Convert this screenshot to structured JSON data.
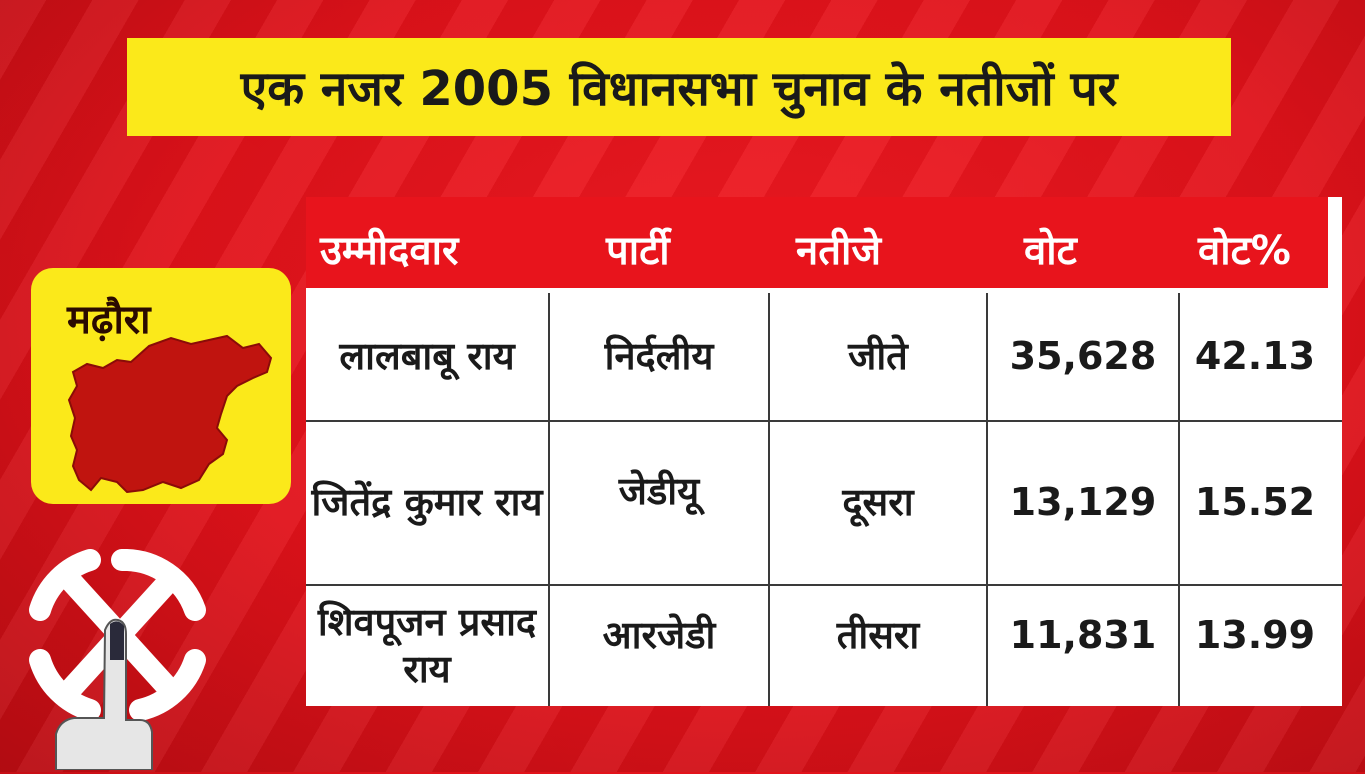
{
  "title": "एक नजर 2005 विधानसभा चुनाव के नतीजों पर",
  "constituency": "मढ़ौरा",
  "colors": {
    "background": "#e0121a",
    "banner": "#fbe91a",
    "header": "#e8141c",
    "map": "#c0140f"
  },
  "icons": [
    "ballot-swastik-icon",
    "finger-ink-icon",
    "constituency-map"
  ],
  "table": {
    "headers": [
      "उम्मीदवार",
      "पार्टी",
      "नतीजे",
      "वोट",
      "वोट%"
    ],
    "rows": [
      {
        "candidate": "लालबाबू राय",
        "party": "निर्दलीय",
        "result": "जीते",
        "votes": "35,628",
        "vote_pct": "42.13"
      },
      {
        "candidate": "जितेंद्र कुमार राय",
        "party": "जेडीयू",
        "result": "दूसरा",
        "votes": "13,129",
        "vote_pct": "15.52"
      },
      {
        "candidate": "शिवपूजन प्रसाद राय",
        "party": "आरजेडी",
        "result": "तीसरा",
        "votes": "11,831",
        "vote_pct": "13.99"
      }
    ]
  }
}
